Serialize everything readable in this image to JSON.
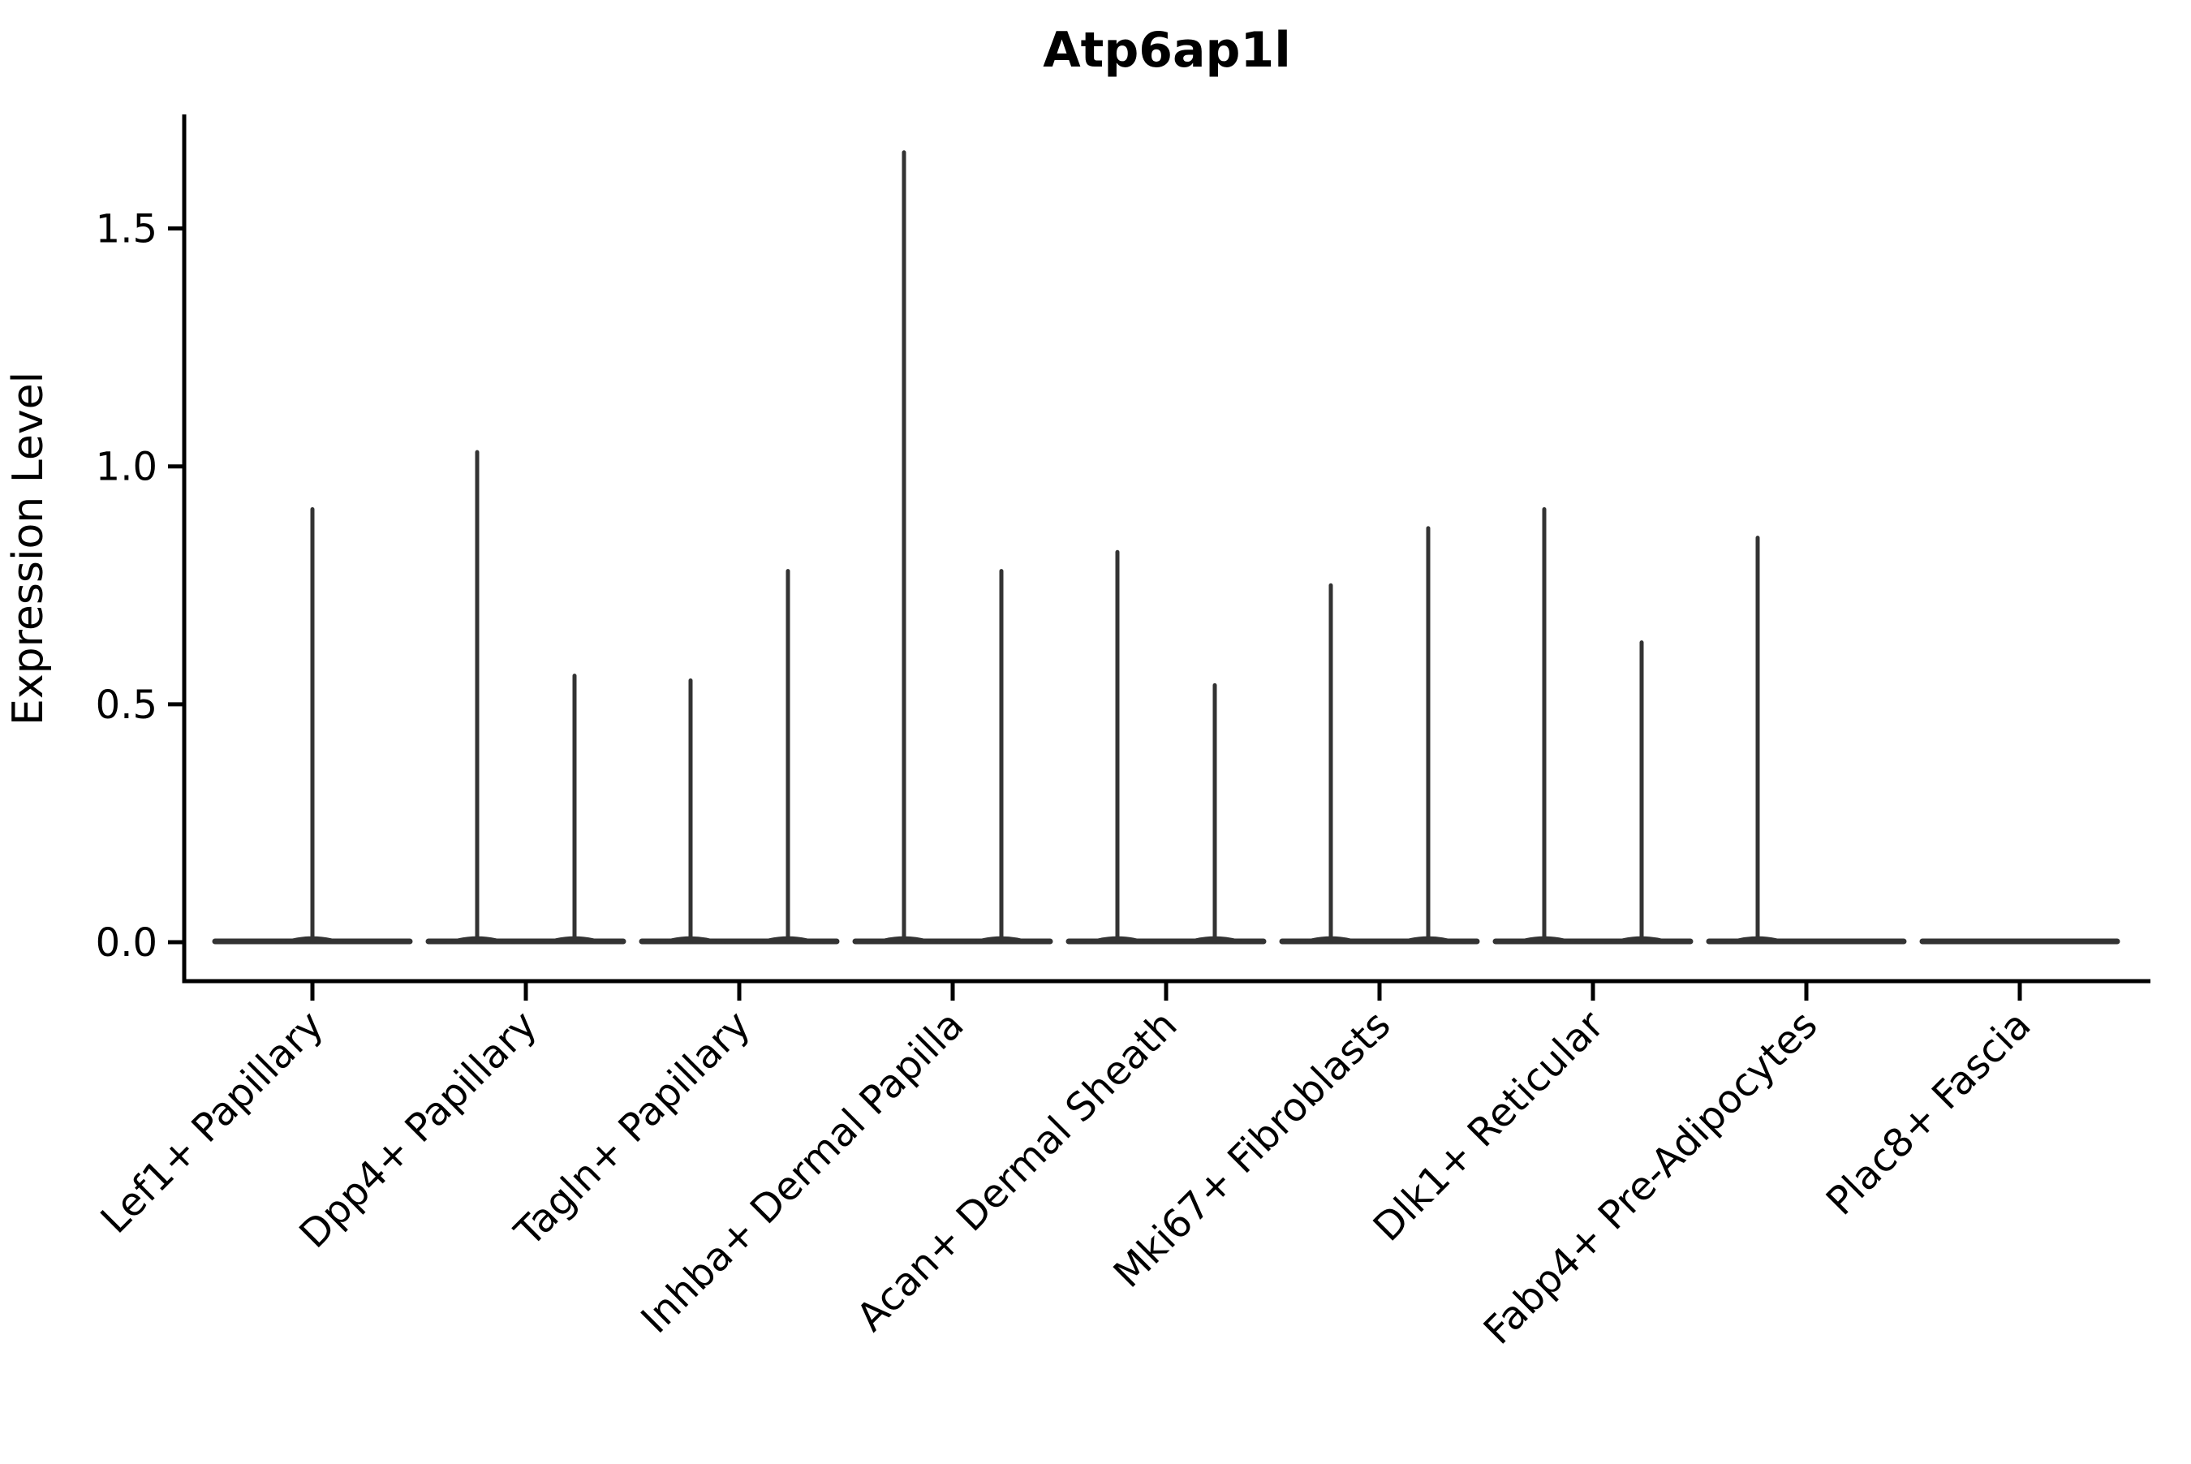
{
  "colors": {
    "violin": "#333333",
    "axis": "#000000",
    "background": "#ffffff"
  },
  "chart_data": {
    "type": "violin",
    "title": "Atp6ap1l",
    "xlabel": "",
    "ylabel": "Expression Level",
    "legend": "none",
    "grid": false,
    "ylim": [
      -0.08,
      1.74
    ],
    "y_ticks": [
      {
        "label": "0.0",
        "value": 0.0
      },
      {
        "label": "0.5",
        "value": 0.5
      },
      {
        "label": "1.0",
        "value": 1.0
      },
      {
        "label": "1.5",
        "value": 1.5
      }
    ],
    "categories": [
      "Lef1+ Papillary",
      "Dpp4+ Papillary",
      "Tagln+ Papillary",
      "Inhba+ Dermal Papilla",
      "Acan+ Dermal Sheath",
      "Mki67+ Fibroblasts",
      "Dlk1+ Reticular",
      "Fabp4+ Pre-Adipocytes",
      "Plac8+ Fascia"
    ],
    "x_tick_rotation_deg": 45,
    "violins": [
      {
        "category": "Lef1+ Papillary",
        "spikes": [
          {
            "position": "center",
            "peak": 0.91
          }
        ]
      },
      {
        "category": "Dpp4+ Papillary",
        "spikes": [
          {
            "position": "left",
            "peak": 1.03
          },
          {
            "position": "right",
            "peak": 0.56
          }
        ]
      },
      {
        "category": "Tagln+ Papillary",
        "spikes": [
          {
            "position": "left",
            "peak": 0.55
          },
          {
            "position": "right",
            "peak": 0.78
          }
        ]
      },
      {
        "category": "Inhba+ Dermal Papilla",
        "spikes": [
          {
            "position": "left",
            "peak": 1.66
          },
          {
            "position": "right",
            "peak": 0.78
          }
        ]
      },
      {
        "category": "Acan+ Dermal Sheath",
        "spikes": [
          {
            "position": "left",
            "peak": 0.82
          },
          {
            "position": "right",
            "peak": 0.54
          }
        ]
      },
      {
        "category": "Mki67+ Fibroblasts",
        "spikes": [
          {
            "position": "left",
            "peak": 0.75
          },
          {
            "position": "right",
            "peak": 0.87
          }
        ]
      },
      {
        "category": "Dlk1+ Reticular",
        "spikes": [
          {
            "position": "left",
            "peak": 0.91
          },
          {
            "position": "right",
            "peak": 0.63
          }
        ]
      },
      {
        "category": "Fabp4+ Pre-Adipocytes",
        "spikes": [
          {
            "position": "left",
            "peak": 0.85
          }
        ]
      },
      {
        "category": "Plac8+ Fascia",
        "spikes": []
      }
    ]
  }
}
